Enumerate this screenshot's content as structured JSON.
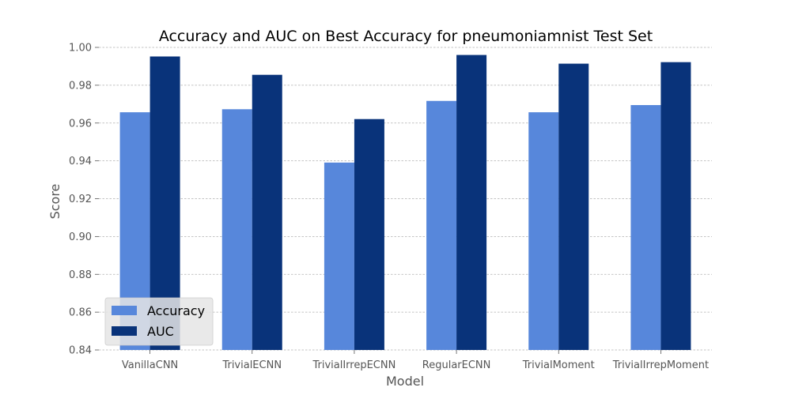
{
  "chart_data": {
    "type": "bar",
    "title": "Accuracy and AUC on Best Accuracy for pneumoniamnist Test Set",
    "xlabel": "Model",
    "ylabel": "Score",
    "categories": [
      "VanillaCNN",
      "TrivialECNN",
      "TrivialIrrepECNN",
      "RegularECNN",
      "TrivialMoment",
      "TrivialIrrepMoment"
    ],
    "series": [
      {
        "name": "Accuracy",
        "color": "#5787db",
        "values": [
          0.9657,
          0.9673,
          0.9391,
          0.9717,
          0.9657,
          0.9695
        ]
      },
      {
        "name": "AUC",
        "color": "#09337a",
        "values": [
          0.9952,
          0.9855,
          0.9621,
          0.996,
          0.9914,
          0.9922
        ]
      }
    ],
    "ylim": [
      0.84,
      1.0
    ],
    "yticks": [
      "0.84",
      "0.86",
      "0.88",
      "0.90",
      "0.92",
      "0.94",
      "0.96",
      "0.98",
      "1.00"
    ],
    "grid": "horizontal dashed",
    "legend_position": "lower-left"
  }
}
